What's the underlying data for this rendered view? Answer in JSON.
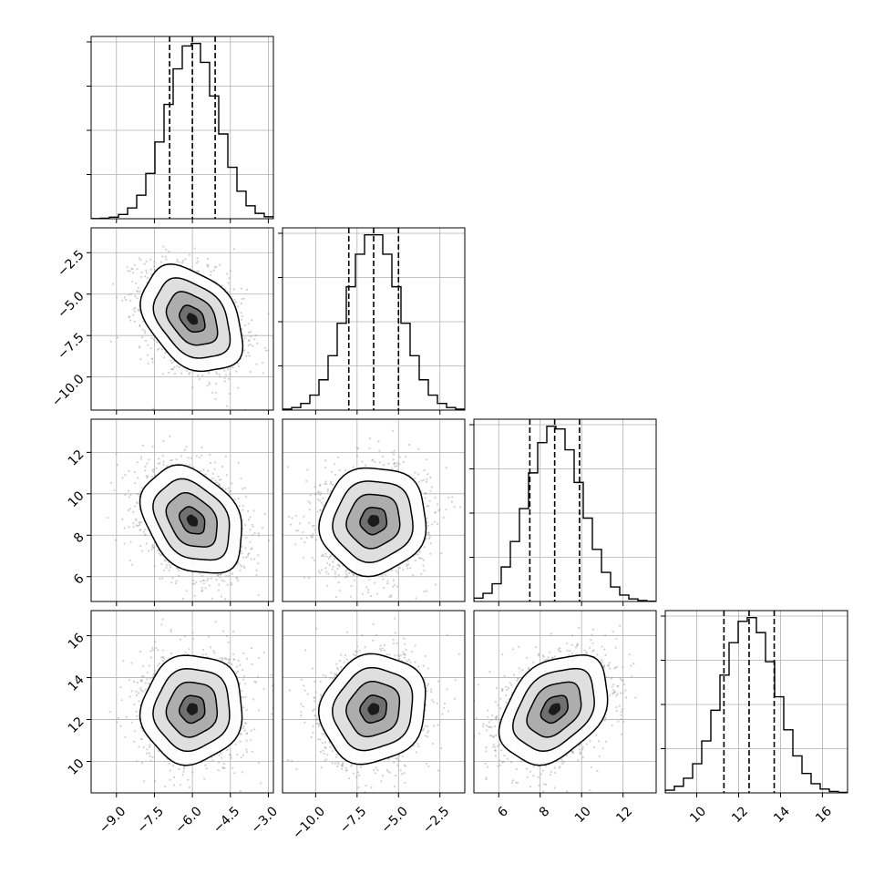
{
  "chart_data": {
    "type": "corner",
    "params": [
      {
        "mean": -6.0,
        "sd": 1.0,
        "range": [
          -10.0,
          -2.8
        ],
        "quantiles": [
          -6.9,
          -6.0,
          -5.1
        ],
        "hist_max": 0.44,
        "ticks": [
          -9.0,
          -7.5,
          -6.0,
          -4.5,
          -3.0
        ],
        "tick_labels": [
          "−9.0",
          "−7.5",
          "−6.0",
          "−4.5",
          "−3.0"
        ]
      },
      {
        "mean": -6.5,
        "sd": 1.6,
        "range": [
          -12.0,
          -1.0
        ],
        "quantiles": [
          -8.0,
          -6.5,
          -5.0
        ],
        "hist_max": 0.28,
        "ticks": [
          -10.0,
          -7.5,
          -5.0,
          -2.5
        ],
        "tick_labels": [
          "−10.0",
          "−7.5",
          "−5.0",
          "−2.5"
        ]
      },
      {
        "mean": 8.7,
        "sd": 1.3,
        "range": [
          4.8,
          13.6
        ],
        "quantiles": [
          7.5,
          8.7,
          9.9
        ],
        "hist_max": 0.33,
        "ticks": [
          6,
          8,
          10,
          12
        ],
        "tick_labels": [
          "6",
          "8",
          "10",
          "12"
        ]
      },
      {
        "mean": 12.5,
        "sd": 1.3,
        "range": [
          8.5,
          17.2
        ],
        "quantiles": [
          11.3,
          12.5,
          13.7
        ],
        "hist_max": 0.33,
        "ticks": [
          10,
          12,
          14,
          16
        ],
        "tick_labels": [
          "10",
          "12",
          "14",
          "16"
        ]
      }
    ],
    "correlations": [
      [
        1.0,
        -0.35,
        -0.3,
        0.05
      ],
      [
        -0.35,
        1.0,
        0.05,
        0.1
      ],
      [
        -0.3,
        0.05,
        1.0,
        0.35
      ],
      [
        0.05,
        0.1,
        0.35,
        1.0
      ]
    ],
    "y_tick_labels": {
      "1": [
        "−2.5",
        "−5.0",
        "−7.5",
        "−10.0"
      ],
      "2": [
        "12",
        "10",
        "8",
        "6"
      ],
      "3": [
        "16",
        "14",
        "12",
        "10"
      ]
    },
    "y_tick_values": {
      "1": [
        -2.5,
        -5.0,
        -7.5,
        -10.0
      ],
      "2": [
        12,
        10,
        8,
        6
      ],
      "3": [
        16,
        14,
        12,
        10
      ]
    },
    "grid": true,
    "samples_per_panel": 1800,
    "hist_bins": 20,
    "contour_levels_sigma": [
      0.5,
      1.0,
      1.5,
      2.0
    ],
    "colors": {
      "line": "#000000",
      "grid": "#b0b0b0",
      "scatter": "#9a9a9a"
    }
  }
}
